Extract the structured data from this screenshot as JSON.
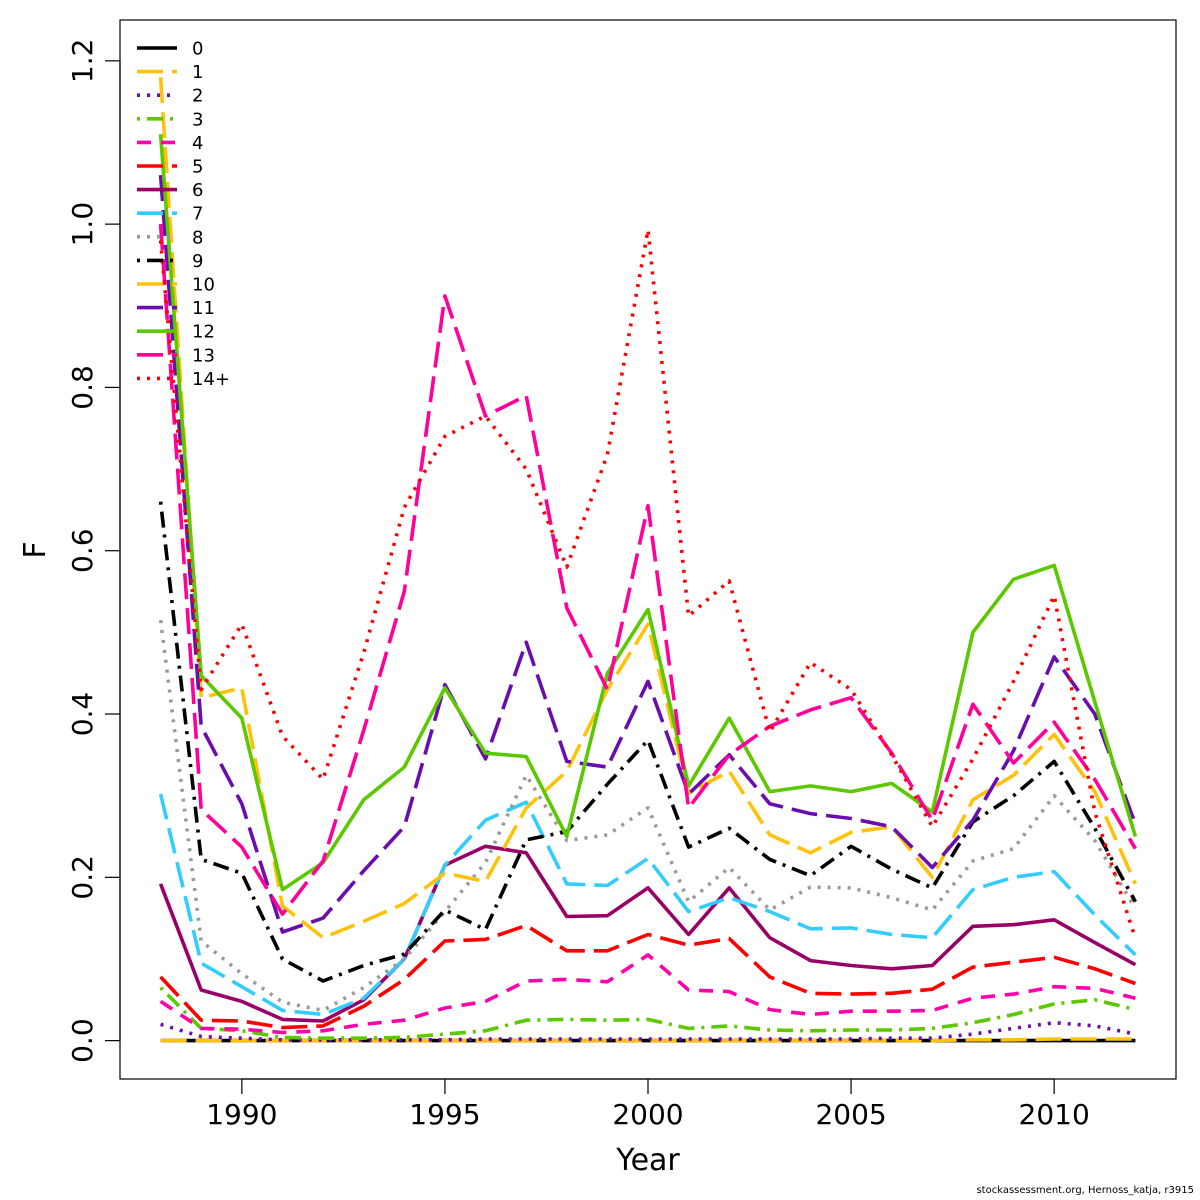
{
  "chart_data": {
    "type": "line",
    "xlabel": "Year",
    "ylabel": "F",
    "xlim": [
      1987.0,
      2013.0
    ],
    "ylim": [
      -0.047,
      1.25
    ],
    "x_ticks": [
      1990,
      1995,
      2000,
      2005,
      2010
    ],
    "y_ticks": [
      0.0,
      0.2,
      0.4,
      0.6,
      0.8,
      1.0,
      1.2
    ],
    "y_tick_labels": [
      "0.0",
      "0.2",
      "0.4",
      "0.6",
      "0.8",
      "1.0",
      "1.2"
    ],
    "legend_position": "top-left",
    "grid": false,
    "x": [
      1988,
      1989,
      1990,
      1991,
      1992,
      1993,
      1994,
      1995,
      1996,
      1997,
      1998,
      1999,
      2000,
      2001,
      2002,
      2003,
      2004,
      2005,
      2006,
      2007,
      2008,
      2009,
      2010,
      2011,
      2012
    ],
    "series": [
      {
        "name": "0",
        "color": "#000000",
        "dash": "solid",
        "values": [
          0.0,
          0.0,
          0.0,
          0.0,
          0.0,
          0.0,
          0.0,
          0.0,
          0.0,
          0.0,
          0.0,
          0.0,
          0.0,
          0.0,
          0.0,
          0.0,
          0.0,
          0.0,
          0.0,
          0.0,
          0.0,
          0.0,
          0.0,
          0.0,
          0.0
        ]
      },
      {
        "name": "1",
        "color": "#FFC20A",
        "dash": "longdash",
        "values": [
          0.0,
          0.0,
          0.0,
          0.0,
          0.0,
          0.0,
          0.0,
          0.0,
          0.0,
          0.0,
          0.0,
          0.0,
          0.0,
          0.0,
          0.0,
          0.0,
          0.0,
          0.0,
          0.0,
          0.0,
          0.001,
          0.001,
          0.002,
          0.002,
          0.002
        ]
      },
      {
        "name": "2",
        "color": "#6A0DAD",
        "dash": "dotted",
        "values": [
          0.02,
          0.005,
          0.003,
          0.001,
          0.001,
          0.001,
          0.001,
          0.001,
          0.002,
          0.002,
          0.002,
          0.002,
          0.002,
          0.002,
          0.002,
          0.002,
          0.002,
          0.002,
          0.003,
          0.003,
          0.008,
          0.015,
          0.022,
          0.018,
          0.008
        ]
      },
      {
        "name": "3",
        "color": "#5CC800",
        "dash": "dotdash",
        "values": [
          0.065,
          0.015,
          0.012,
          0.004,
          0.003,
          0.003,
          0.004,
          0.008,
          0.012,
          0.025,
          0.026,
          0.025,
          0.026,
          0.015,
          0.018,
          0.013,
          0.012,
          0.013,
          0.013,
          0.015,
          0.022,
          0.032,
          0.045,
          0.05,
          0.038
        ]
      },
      {
        "name": "4",
        "color": "#FF00AA",
        "dash": "dashed",
        "values": [
          0.048,
          0.015,
          0.014,
          0.01,
          0.012,
          0.02,
          0.025,
          0.04,
          0.048,
          0.073,
          0.075,
          0.072,
          0.105,
          0.062,
          0.06,
          0.038,
          0.032,
          0.036,
          0.036,
          0.037,
          0.052,
          0.057,
          0.066,
          0.064,
          0.052
        ]
      },
      {
        "name": "5",
        "color": "#FF0000",
        "dash": "longdash",
        "values": [
          0.078,
          0.025,
          0.024,
          0.016,
          0.018,
          0.042,
          0.075,
          0.122,
          0.124,
          0.141,
          0.11,
          0.11,
          0.13,
          0.117,
          0.125,
          0.078,
          0.058,
          0.057,
          0.058,
          0.063,
          0.09,
          0.096,
          0.102,
          0.088,
          0.07
        ]
      },
      {
        "name": "6",
        "color": "#990066",
        "dash": "solid",
        "values": [
          0.192,
          0.062,
          0.048,
          0.026,
          0.024,
          0.05,
          0.1,
          0.215,
          0.238,
          0.23,
          0.152,
          0.153,
          0.187,
          0.13,
          0.187,
          0.126,
          0.098,
          0.092,
          0.088,
          0.092,
          0.14,
          0.142,
          0.148,
          0.12,
          0.093
        ]
      },
      {
        "name": "7",
        "color": "#33CCFF",
        "dash": "longdash",
        "values": [
          0.302,
          0.095,
          0.066,
          0.037,
          0.032,
          0.052,
          0.1,
          0.215,
          0.27,
          0.292,
          0.192,
          0.19,
          0.223,
          0.158,
          0.175,
          0.158,
          0.137,
          0.138,
          0.13,
          0.126,
          0.185,
          0.2,
          0.207,
          0.154,
          0.105
        ]
      },
      {
        "name": "8",
        "color": "#999999",
        "dash": "dotted",
        "values": [
          0.515,
          0.122,
          0.082,
          0.047,
          0.037,
          0.065,
          0.1,
          0.158,
          0.218,
          0.325,
          0.245,
          0.252,
          0.285,
          0.17,
          0.212,
          0.16,
          0.188,
          0.187,
          0.175,
          0.16,
          0.22,
          0.235,
          0.3,
          0.245,
          0.162
        ]
      },
      {
        "name": "9",
        "color": "#000000",
        "dash": "dotdash",
        "values": [
          0.66,
          0.222,
          0.205,
          0.1,
          0.073,
          0.092,
          0.106,
          0.16,
          0.136,
          0.246,
          0.256,
          0.314,
          0.368,
          0.237,
          0.26,
          0.222,
          0.202,
          0.238,
          0.21,
          0.187,
          0.268,
          0.3,
          0.342,
          0.26,
          0.17
        ]
      },
      {
        "name": "10",
        "color": "#FFC20A",
        "dash": "longdash",
        "values": [
          1.18,
          0.42,
          0.432,
          0.165,
          0.126,
          0.146,
          0.168,
          0.205,
          0.195,
          0.285,
          0.33,
          0.43,
          0.51,
          0.303,
          0.33,
          0.252,
          0.23,
          0.255,
          0.262,
          0.2,
          0.295,
          0.325,
          0.375,
          0.305,
          0.192
        ]
      },
      {
        "name": "11",
        "color": "#6A0DAD",
        "dash": "longdash",
        "values": [
          1.06,
          0.385,
          0.29,
          0.133,
          0.15,
          0.208,
          0.262,
          0.436,
          0.345,
          0.488,
          0.342,
          0.335,
          0.44,
          0.302,
          0.35,
          0.29,
          0.278,
          0.272,
          0.262,
          0.212,
          0.27,
          0.355,
          0.47,
          0.4,
          0.265
        ]
      },
      {
        "name": "12",
        "color": "#5CC800",
        "dash": "solid",
        "values": [
          1.11,
          0.447,
          0.395,
          0.185,
          0.218,
          0.295,
          0.335,
          0.432,
          0.352,
          0.348,
          0.25,
          0.45,
          0.528,
          0.312,
          0.395,
          0.305,
          0.312,
          0.305,
          0.315,
          0.28,
          0.5,
          0.565,
          0.582,
          0.415,
          0.25
        ]
      },
      {
        "name": "13",
        "color": "#FF0099",
        "dash": "longdash",
        "values": [
          1.0,
          0.283,
          0.237,
          0.155,
          0.22,
          0.38,
          0.55,
          0.912,
          0.765,
          0.79,
          0.53,
          0.43,
          0.655,
          0.285,
          0.35,
          0.385,
          0.405,
          0.42,
          0.352,
          0.27,
          0.412,
          0.34,
          0.39,
          0.32,
          0.235
        ]
      },
      {
        "name": "14+",
        "color": "#FF0000",
        "dash": "dotted",
        "values": [
          0.98,
          0.43,
          0.51,
          0.373,
          0.32,
          0.475,
          0.653,
          0.74,
          0.765,
          0.7,
          0.58,
          0.718,
          0.993,
          0.52,
          0.563,
          0.378,
          0.463,
          0.43,
          0.35,
          0.262,
          0.345,
          0.44,
          0.545,
          0.28,
          0.125
        ]
      }
    ]
  },
  "footer": {
    "credit": "stockassessment.org, Hernoss_katja, r3915"
  }
}
